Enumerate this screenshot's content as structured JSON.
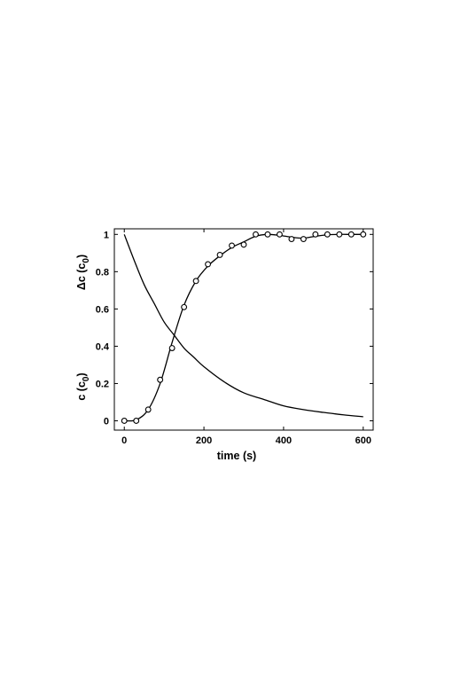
{
  "chart_data": {
    "type": "line",
    "xlabel": "time (s)",
    "ylabels": [
      {
        "prefix": "Δc (c",
        "sub": "0",
        "suffix": ")"
      },
      {
        "prefix": "c (c",
        "sub": "0",
        "suffix": ")"
      }
    ],
    "xlim": [
      -25,
      625
    ],
    "ylim": [
      -0.05,
      1.03
    ],
    "xticks": [
      0,
      200,
      400,
      600
    ],
    "yticks": [
      0,
      0.2,
      0.4,
      0.6,
      0.8,
      1
    ],
    "xtick_labels": [
      "0",
      "200",
      "400",
      "600"
    ],
    "ytick_labels": [
      "0",
      "0.2",
      "0.4",
      "0.6",
      "0.8",
      "1"
    ],
    "grid": false,
    "series": [
      {
        "style": "markers",
        "marker": "circle",
        "x": [
          0,
          30,
          60,
          90,
          120,
          150,
          180,
          210,
          240,
          270,
          300,
          330,
          360,
          390,
          420,
          450,
          480,
          510,
          540,
          570,
          600
        ],
        "y": [
          0,
          0,
          0.06,
          0.22,
          0.39,
          0.61,
          0.75,
          0.84,
          0.89,
          0.94,
          0.945,
          1.0,
          1.0,
          1.0,
          0.975,
          0.975,
          1.0,
          1.0,
          1.0,
          1.0,
          1.0
        ]
      },
      {
        "style": "line",
        "x": [
          0,
          30,
          60,
          90,
          120,
          150,
          180,
          210,
          240,
          270,
          300,
          330,
          360,
          390,
          420,
          450,
          480,
          510,
          540,
          570,
          600
        ],
        "y": [
          0,
          0.005,
          0.06,
          0.2,
          0.42,
          0.62,
          0.75,
          0.83,
          0.885,
          0.93,
          0.96,
          0.99,
          1.0,
          0.995,
          0.985,
          0.98,
          0.99,
          0.998,
          1.0,
          1.0,
          1.0
        ]
      },
      {
        "style": "line",
        "x": [
          0,
          25,
          50,
          75,
          100,
          125,
          150,
          175,
          200,
          250,
          300,
          350,
          400,
          450,
          500,
          550,
          600
        ],
        "y": [
          1.0,
          0.86,
          0.73,
          0.63,
          0.53,
          0.46,
          0.39,
          0.34,
          0.29,
          0.21,
          0.15,
          0.115,
          0.08,
          0.06,
          0.045,
          0.032,
          0.022
        ]
      }
    ]
  }
}
